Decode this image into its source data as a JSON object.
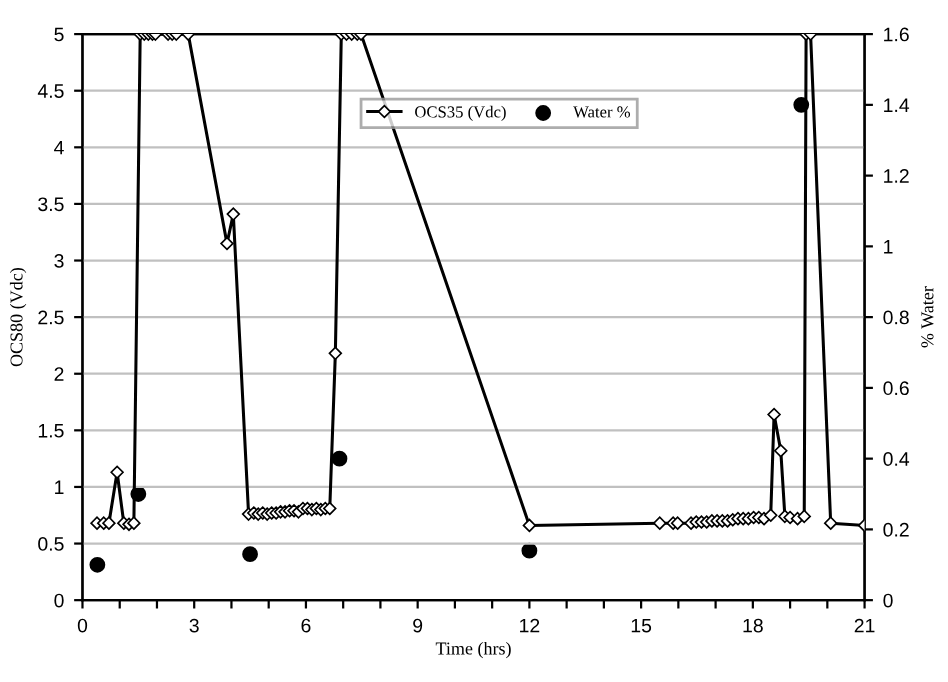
{
  "chart_data": {
    "type": "line",
    "xlabel": "Time (hrs)",
    "ylabel": "OCS80 (Vdc)",
    "y2label": "% Water",
    "xlim": [
      0,
      21
    ],
    "xticks": [
      0,
      {
        "value": 1,
        "label": null
      },
      {
        "value": 2,
        "label": null
      },
      3,
      {
        "value": 4,
        "label": null
      },
      {
        "value": 5,
        "label": null
      },
      6,
      {
        "value": 7,
        "label": null
      },
      {
        "value": 8,
        "label": null
      },
      9,
      {
        "value": 10,
        "label": null
      },
      {
        "value": 11,
        "label": null
      },
      12,
      {
        "value": 13,
        "label": null
      },
      {
        "value": 14,
        "label": null
      },
      15,
      {
        "value": 16,
        "label": null
      },
      {
        "value": 17,
        "label": null
      },
      18,
      {
        "value": 19,
        "label": null
      },
      {
        "value": 20,
        "label": null
      },
      21
    ],
    "ylim": [
      0,
      5
    ],
    "yticks": [
      0,
      0.5,
      1,
      1.5,
      2,
      2.5,
      3,
      3.5,
      4,
      4.5,
      5
    ],
    "y2lim": [
      0,
      1.6
    ],
    "y2ticks": [
      0,
      0.2,
      0.4,
      0.6,
      0.8,
      1,
      1.2,
      1.4,
      1.6
    ],
    "grid": "y",
    "legend": "top right",
    "series": [
      {
        "name": "OCS35 (Vdc)",
        "color": "#000000",
        "marker": "diamond",
        "line_style": "solid",
        "x": [
          0.39,
          0.57,
          0.71,
          0.93,
          1.11,
          1.25,
          1.38,
          1.55,
          1.66,
          1.77,
          1.88,
          1.96,
          2.3,
          2.41,
          2.52,
          2.84,
          3.88,
          4.05,
          4.46,
          4.6,
          4.72,
          4.84,
          4.96,
          5.08,
          5.2,
          5.32,
          5.44,
          5.56,
          5.68,
          5.8,
          5.92,
          6.04,
          6.16,
          6.28,
          6.4,
          6.52,
          6.64,
          6.79,
          6.95,
          7.09,
          7.23,
          7.38,
          7.48,
          12,
          15.5,
          15.86,
          15.98,
          16.34,
          16.48,
          16.62,
          16.76,
          16.9,
          17.04,
          17.18,
          17.32,
          17.46,
          17.6,
          17.74,
          17.88,
          18.02,
          18.16,
          18.3,
          18.48,
          18.57,
          18.75,
          18.86,
          19.0,
          19.2,
          19.38,
          19.43,
          19.55,
          20.09,
          21
        ],
        "values": [
          0.68,
          0.68,
          0.68,
          1.13,
          0.68,
          0.67,
          0.68,
          5,
          5,
          5,
          5,
          5,
          5,
          5,
          5,
          5,
          3.15,
          3.41,
          0.76,
          0.77,
          0.76,
          0.77,
          0.76,
          0.77,
          0.77,
          0.78,
          0.78,
          0.79,
          0.79,
          0.78,
          0.81,
          0.81,
          0.8,
          0.81,
          0.8,
          0.81,
          0.81,
          2.18,
          5,
          5,
          5,
          5,
          5,
          0.66,
          0.68,
          0.68,
          0.68,
          0.68,
          0.69,
          0.69,
          0.69,
          0.7,
          0.7,
          0.7,
          0.7,
          0.71,
          0.72,
          0.72,
          0.72,
          0.73,
          0.73,
          0.72,
          0.75,
          1.64,
          1.32,
          0.74,
          0.73,
          0.72,
          0.74,
          5,
          5,
          0.68,
          0.66
        ]
      },
      {
        "name": "Water %",
        "type": "scatter",
        "axis": "y2",
        "color": "#000000",
        "marker": "circle",
        "x": [
          0.4,
          1.5,
          4.5,
          6.9,
          12,
          19.3
        ],
        "values": [
          0.1,
          0.3,
          0.13,
          0.4,
          0.14,
          1.4
        ]
      }
    ]
  }
}
